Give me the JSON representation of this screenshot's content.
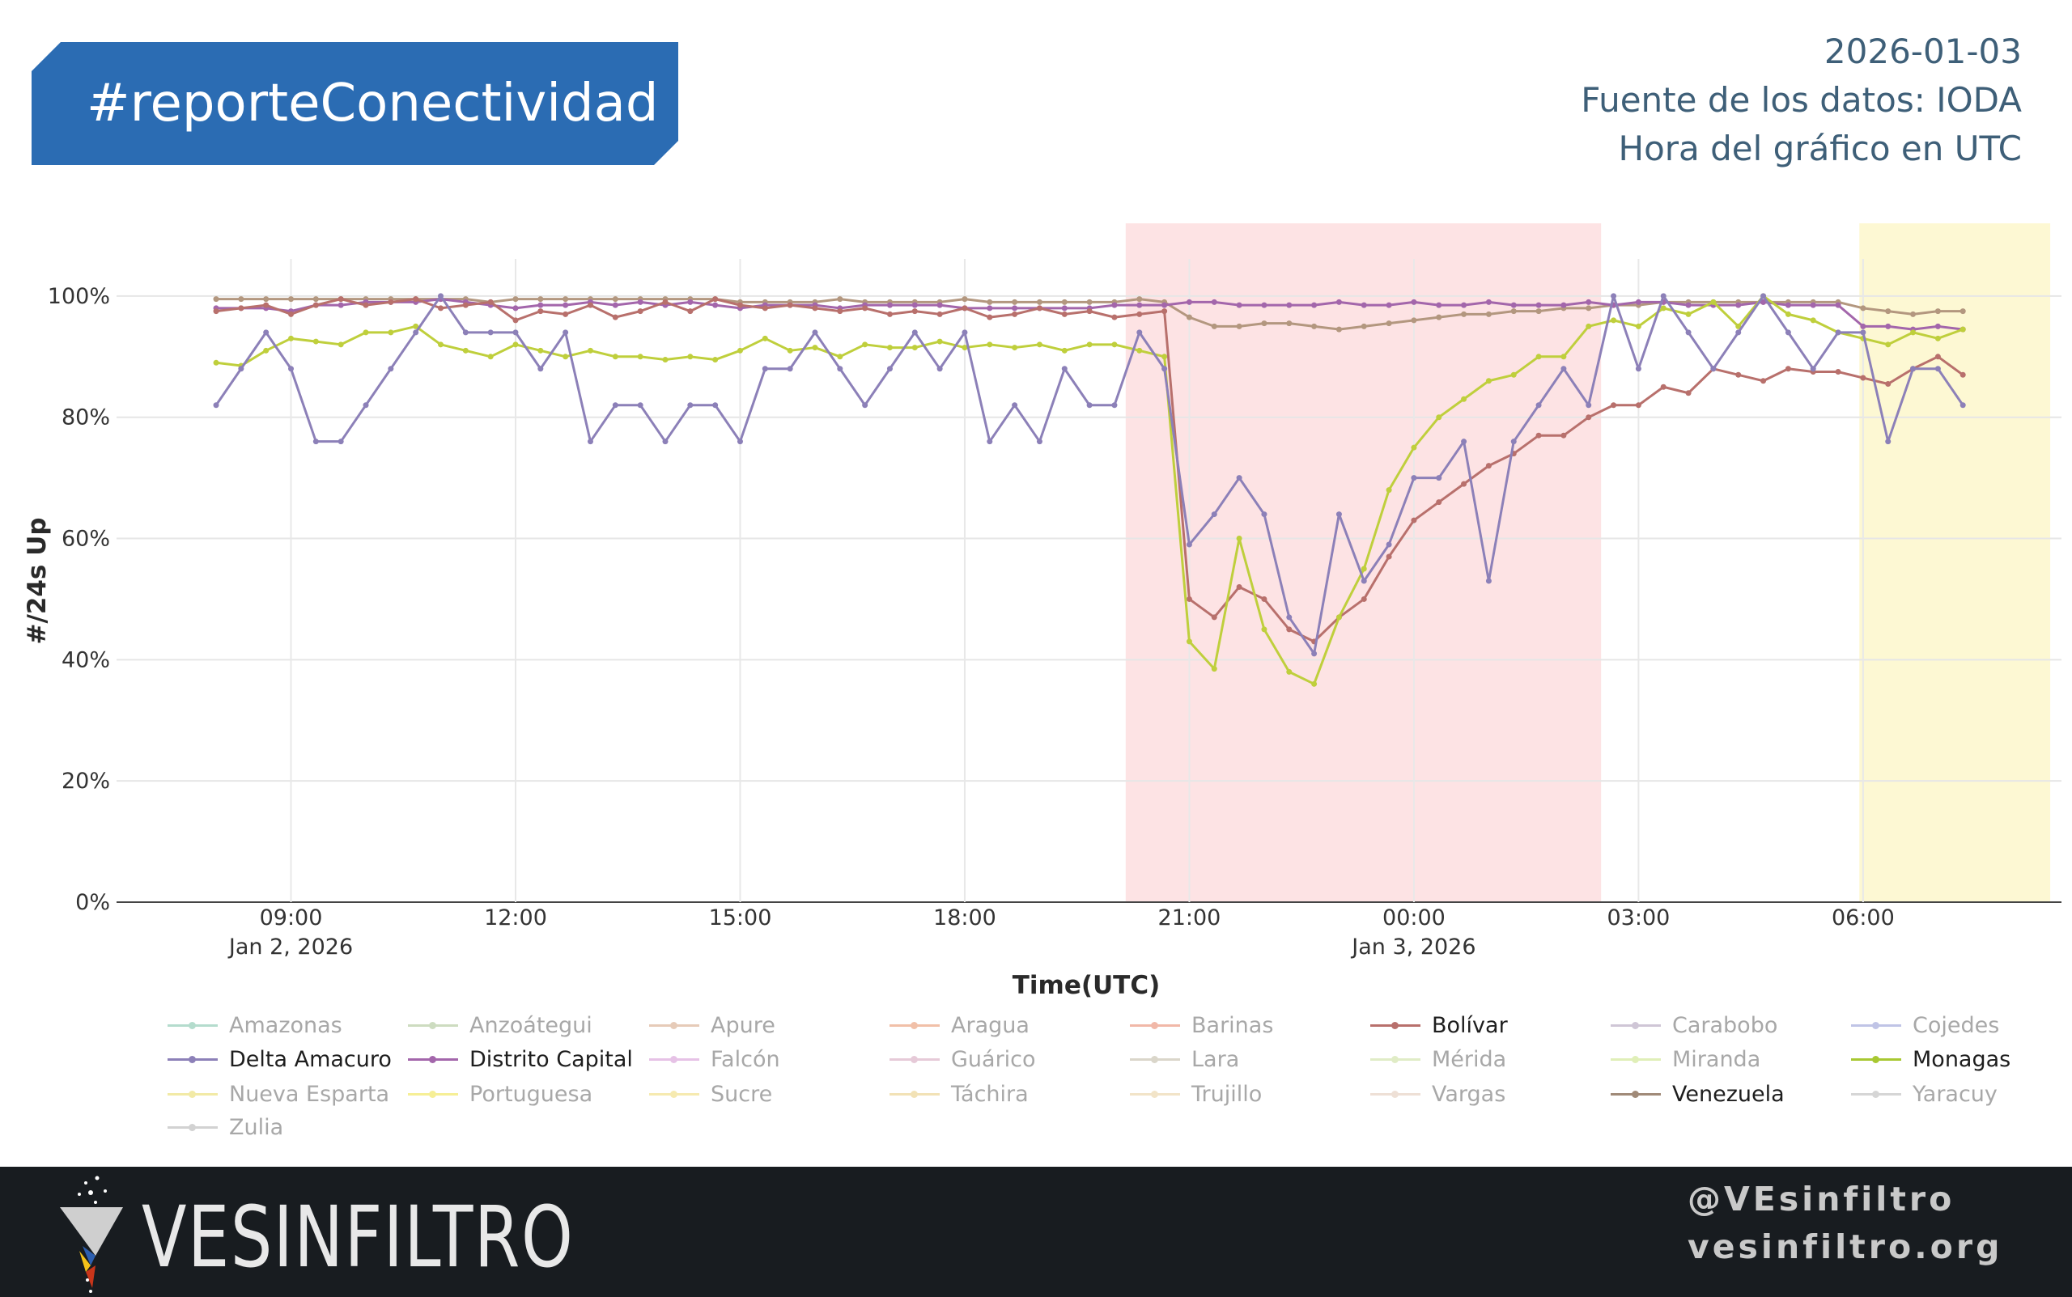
{
  "header": {
    "hashtag": "#reporteConectividad",
    "date": "2026-01-03",
    "source": "Fuente de los datos: IODA",
    "timezone_note": "Hora del gráfico en UTC"
  },
  "footer": {
    "logo_text": "VESINFILTRO",
    "handle": "@VEsinfiltro",
    "website": "vesinfiltro.org"
  },
  "colors": {
    "banner": "#2b6cb3",
    "footer_bg": "#181c20",
    "outage_band": "#fde3e4",
    "recent_band": "#fdf8d3"
  },
  "chart_data": {
    "type": "line",
    "title": "",
    "xlabel": "Time(UTC)",
    "ylabel": "#/24s Up",
    "x_unit": "hours since 2026-01-02 00:00 UTC",
    "x_start": 8,
    "x_step_hours": 0.3333333,
    "xlim": [
      6.67,
      32.65
    ],
    "ylim": [
      0,
      112
    ],
    "grid": true,
    "x_ticks": [
      {
        "value": 9,
        "label": "09:00",
        "sublabel": "Jan 2, 2026"
      },
      {
        "value": 12,
        "label": "12:00",
        "sublabel": ""
      },
      {
        "value": 15,
        "label": "15:00",
        "sublabel": ""
      },
      {
        "value": 18,
        "label": "18:00",
        "sublabel": ""
      },
      {
        "value": 21,
        "label": "21:00",
        "sublabel": ""
      },
      {
        "value": 24,
        "label": "00:00",
        "sublabel": "Jan 3, 2026"
      },
      {
        "value": 27,
        "label": "03:00",
        "sublabel": ""
      },
      {
        "value": 30,
        "label": "06:00",
        "sublabel": ""
      }
    ],
    "y_ticks": [
      {
        "value": 0,
        "label": "0%"
      },
      {
        "value": 20,
        "label": "20%"
      },
      {
        "value": 40,
        "label": "40%"
      },
      {
        "value": 60,
        "label": "60%"
      },
      {
        "value": 80,
        "label": "80%"
      },
      {
        "value": 100,
        "label": "100%"
      }
    ],
    "bands": [
      {
        "name": "outage",
        "from": 20.15,
        "to": 26.5,
        "color": "#fde3e4"
      },
      {
        "name": "recent",
        "from": 29.95,
        "to": 32.5,
        "color": "#fdf8d3"
      }
    ],
    "series": [
      {
        "name": "Venezuela",
        "color": "#b3977f",
        "values": [
          99.5,
          99.5,
          99.5,
          99.5,
          99.5,
          99.5,
          99.5,
          99.5,
          99.5,
          99.5,
          99.5,
          99,
          99.5,
          99.5,
          99.5,
          99.5,
          99.5,
          99.5,
          99.5,
          99.5,
          99.5,
          99,
          99,
          99,
          99,
          99.5,
          99,
          99,
          99,
          99,
          99.5,
          99,
          99,
          99,
          99,
          99,
          99,
          99.5,
          99,
          96.5,
          95,
          95,
          95.5,
          95.5,
          95,
          94.5,
          95,
          95.5,
          96,
          96.5,
          97,
          97,
          97.5,
          97.5,
          98,
          98,
          98.5,
          98.5,
          99,
          99,
          99,
          99,
          99,
          99,
          99,
          99,
          98,
          97.5,
          97,
          97.5,
          97.5
        ]
      },
      {
        "name": "Distrito Capital",
        "color": "#a366ab",
        "values": [
          98,
          98,
          98,
          97.5,
          98.5,
          98.5,
          99,
          99,
          99,
          99.5,
          99,
          98.5,
          98,
          98.5,
          98.5,
          99,
          98.5,
          99,
          98.5,
          99,
          98.5,
          98,
          98.5,
          98.5,
          98.5,
          98,
          98.5,
          98.5,
          98.5,
          98.5,
          98,
          98,
          98,
          98,
          98,
          98,
          98.5,
          98.5,
          98.5,
          99,
          99,
          98.5,
          98.5,
          98.5,
          98.5,
          99,
          98.5,
          98.5,
          99,
          98.5,
          98.5,
          99,
          98.5,
          98.5,
          98.5,
          99,
          98.5,
          99,
          99,
          98.5,
          98.5,
          98.5,
          99,
          98.5,
          98.5,
          98.5,
          95,
          95,
          94.5,
          95,
          94.5
        ]
      },
      {
        "name": "Bolívar",
        "color": "#b8706c",
        "values": [
          97.5,
          98,
          98.5,
          97,
          98.5,
          99.5,
          98.5,
          99,
          99.5,
          98,
          98.5,
          99,
          96,
          97.5,
          97,
          98.5,
          96.5,
          97.5,
          99,
          97.5,
          99.5,
          98.5,
          98,
          98.5,
          98,
          97.5,
          98,
          97,
          97.5,
          97,
          98,
          96.5,
          97,
          98,
          97,
          97.5,
          96.5,
          97,
          97.5,
          50,
          47,
          52,
          50,
          45,
          43,
          47,
          50,
          57,
          63,
          66,
          69,
          72,
          74,
          77,
          77,
          80,
          82,
          82,
          85,
          84,
          88,
          87,
          86,
          88,
          87.5,
          87.5,
          86.5,
          85.5,
          88,
          90,
          87
        ]
      },
      {
        "name": "Monagas",
        "color": "#bfcf3c",
        "values": [
          89,
          88.5,
          91,
          93,
          92.5,
          92,
          94,
          94,
          95,
          92,
          91,
          90,
          92,
          91,
          90,
          91,
          90,
          90,
          89.5,
          90,
          89.5,
          91,
          93,
          91,
          91.5,
          90,
          92,
          91.5,
          91.5,
          92.5,
          91.5,
          92,
          91.5,
          92,
          91,
          92,
          92,
          91,
          90,
          43,
          38.5,
          60,
          45,
          38,
          36,
          47,
          55,
          68,
          75,
          80,
          83,
          86,
          87,
          90,
          90,
          95,
          96,
          95,
          98,
          97,
          99,
          95,
          100,
          97,
          96,
          94,
          93,
          92,
          94,
          93,
          94.5
        ]
      },
      {
        "name": "Delta Amacuro",
        "color": "#8c80b8",
        "values": [
          82,
          88,
          94,
          88,
          76,
          76,
          82,
          88,
          94,
          100,
          94,
          94,
          94,
          88,
          94,
          76,
          82,
          82,
          76,
          82,
          82,
          76,
          88,
          88,
          94,
          88,
          82,
          88,
          94,
          88,
          94,
          76,
          82,
          76,
          88,
          82,
          82,
          94,
          88,
          59,
          64,
          70,
          64,
          47,
          41,
          64,
          53,
          59,
          70,
          70,
          76,
          53,
          76,
          82,
          88,
          82,
          100,
          88,
          100,
          94,
          88,
          94,
          100,
          94,
          88,
          94,
          94,
          76,
          88,
          88,
          82
        ]
      }
    ],
    "legend": {
      "placement": "bottom",
      "items": [
        {
          "name": "Amazonas",
          "color": "#b4dccd",
          "active": false
        },
        {
          "name": "Anzoátegui",
          "color": "#cddcc0",
          "active": false
        },
        {
          "name": "Apure",
          "color": "#e6cbb8",
          "active": false
        },
        {
          "name": "Aragua",
          "color": "#f1c0a8",
          "active": false
        },
        {
          "name": "Barinas",
          "color": "#f1b8a8",
          "active": false
        },
        {
          "name": "Bolívar",
          "color": "#b8706c",
          "active": true
        },
        {
          "name": "Carabobo",
          "color": "#cfc6d6",
          "active": false
        },
        {
          "name": "Cojedes",
          "color": "#c0c4e6",
          "active": false
        },
        {
          "name": "Delta Amacuro",
          "color": "#8c80b8",
          "active": true
        },
        {
          "name": "Distrito Capital",
          "color": "#a366ab",
          "active": true
        },
        {
          "name": "Falcón",
          "color": "#e6c2e6",
          "active": false
        },
        {
          "name": "Guárico",
          "color": "#e6cad8",
          "active": false
        },
        {
          "name": "Lara",
          "color": "#dad6ca",
          "active": false
        },
        {
          "name": "Mérida",
          "color": "#e0ecc6",
          "active": false
        },
        {
          "name": "Miranda",
          "color": "#e0efb8",
          "active": false
        },
        {
          "name": "Monagas",
          "color": "#a8c832",
          "active": true
        },
        {
          "name": "Nueva Esparta",
          "color": "#f2eaa6",
          "active": false
        },
        {
          "name": "Portuguesa",
          "color": "#f6ef96",
          "active": false
        },
        {
          "name": "Sucre",
          "color": "#f6eab0",
          "active": false
        },
        {
          "name": "Táchira",
          "color": "#f2e2b6",
          "active": false
        },
        {
          "name": "Trujillo",
          "color": "#f2e4c8",
          "active": false
        },
        {
          "name": "Vargas",
          "color": "#eee0d6",
          "active": false
        },
        {
          "name": "Venezuela",
          "color": "#a08a78",
          "active": true
        },
        {
          "name": "Yaracuy",
          "color": "#d6d6d6",
          "active": false
        },
        {
          "name": "Zulia",
          "color": "#d2d2d2",
          "active": false
        }
      ]
    }
  }
}
